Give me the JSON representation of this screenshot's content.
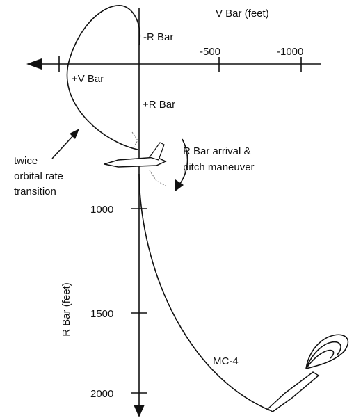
{
  "axes": {
    "h_title": "V Bar (feet)",
    "v_title": "R Bar (feet)",
    "h_ticks": [
      "-500",
      "-1000"
    ],
    "v_ticks": [
      "1000",
      "1500",
      "2000"
    ]
  },
  "labels": {
    "minus_r": "-R Bar",
    "plus_v": "+V Bar",
    "plus_r": "+R Bar",
    "mc4": "MC-4"
  },
  "notes": {
    "transition": [
      "twice",
      "orbital rate",
      "transition"
    ],
    "arrival": [
      "R Bar arrival &",
      "pitch maneuver"
    ]
  }
}
